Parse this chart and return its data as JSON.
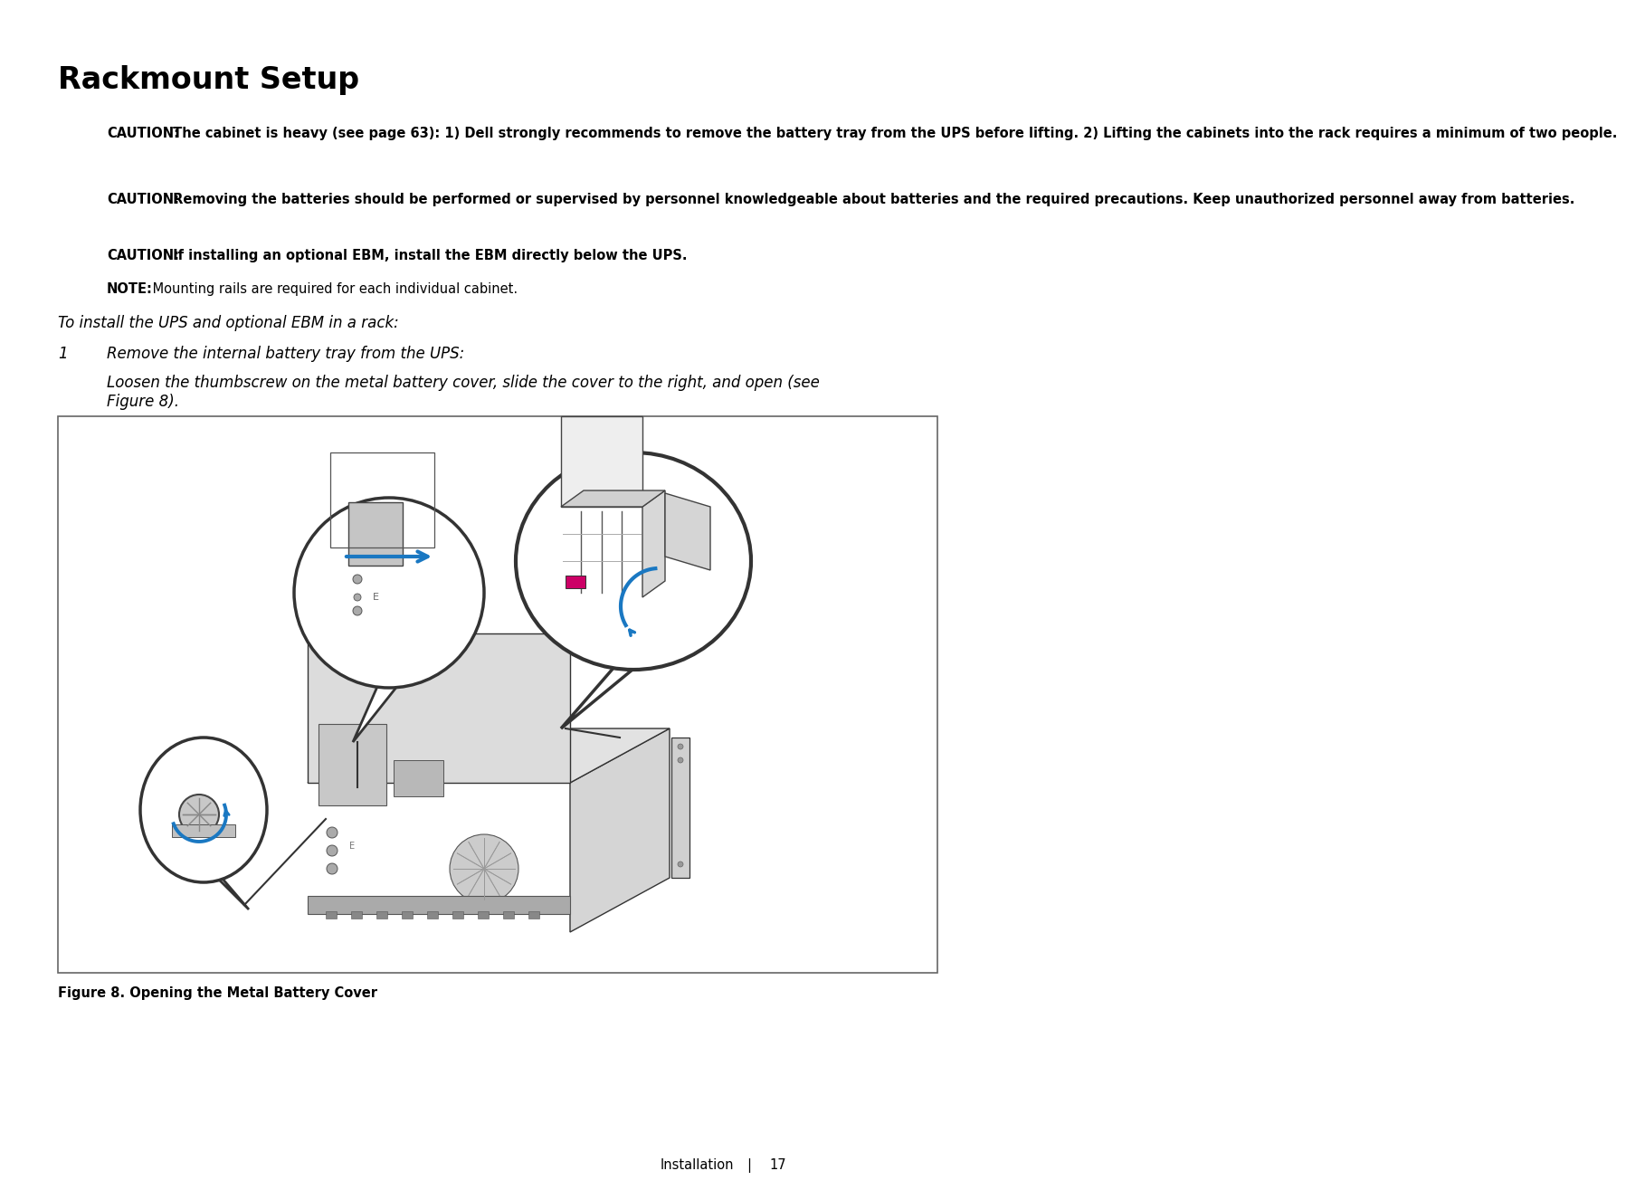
{
  "title": "Rackmount Setup",
  "caution1_label": "CAUTION:",
  "caution1_body": " The cabinet is heavy (see page 63): 1) Dell strongly recommends to remove the battery tray from the UPS before lifting. 2) Lifting the cabinets into the rack requires a minimum of two people.",
  "caution2_label": "CAUTION:",
  "caution2_body": " Removing the batteries should be performed or supervised by personnel knowledgeable about batteries and the required precautions. Keep unauthorized personnel away from batteries.",
  "caution3_label": "CAUTION:",
  "caution3_body": " If installing an optional EBM, install the EBM directly below the UPS.",
  "note_label": "NOTE:",
  "note_body": " Mounting rails are required for each individual cabinet.",
  "intro_text": "To install the UPS and optional EBM in a rack:",
  "step1_num": "1",
  "step1_text": "Remove the internal battery tray from the UPS:",
  "step1_detail": "Loosen the thumbscrew on the metal battery cover, slide the cover to the right, and open (see\nFigure 8).",
  "figure_caption": "Figure 8. Opening the Metal Battery Cover",
  "footer_text": "Installation",
  "footer_sep": "|",
  "footer_page": "17",
  "bg_color": "#ffffff",
  "text_color": "#000000",
  "blue_color": "#1a78c2",
  "magenta_color": "#cc0066",
  "dark_gray": "#333333",
  "med_gray": "#888888",
  "light_gray": "#cccccc",
  "lighter_gray": "#e8e8e8",
  "fig_border": "#666666"
}
